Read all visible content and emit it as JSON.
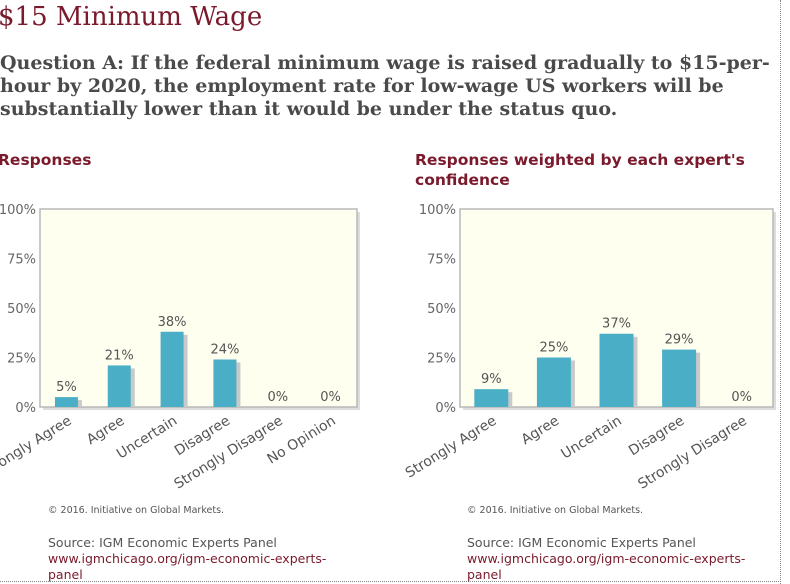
{
  "page": {
    "title": "$15 Minimum Wage",
    "question": "Question A: If the federal minimum wage is raised gradually to $15-per-hour by 2020, the employment rate for low-wage US workers will be substantially lower than it would be under the status quo."
  },
  "colors": {
    "bar": "#4aafc6",
    "bar_shadow": "#c9c9c9",
    "plot_bg": "#fffff0",
    "plot_border": "#b8b8b8",
    "heading": "#7a1a2c",
    "text": "#555555"
  },
  "chart_data": [
    {
      "type": "bar",
      "title": "Responses",
      "categories": [
        "Strongly Agree",
        "Agree",
        "Uncertain",
        "Disagree",
        "Strongly Disagree",
        "No Opinion"
      ],
      "values": [
        5,
        21,
        38,
        24,
        0,
        0
      ],
      "value_labels": [
        "5%",
        "21%",
        "38%",
        "24%",
        "0%",
        "0%"
      ],
      "y_ticks": [
        "100%",
        "75%",
        "50%",
        "25%",
        "0%"
      ],
      "ylim": [
        0,
        100
      ],
      "xlabel": "",
      "ylabel": ""
    },
    {
      "type": "bar",
      "title": "Responses weighted by each expert's confidence",
      "categories": [
        "Strongly Agree",
        "Agree",
        "Uncertain",
        "Disagree",
        "Strongly Disagree"
      ],
      "values": [
        9,
        25,
        37,
        29,
        0
      ],
      "value_labels": [
        "9%",
        "25%",
        "37%",
        "29%",
        "0%"
      ],
      "y_ticks": [
        "100%",
        "75%",
        "50%",
        "25%",
        "0%"
      ],
      "ylim": [
        0,
        100
      ],
      "xlabel": "",
      "ylabel": ""
    }
  ],
  "footer": [
    {
      "copyright": "© 2016. Initiative on Global Markets.",
      "source": "Source: IGM Economic Experts Panel",
      "link": "www.igmchicago.org/igm-economic-experts-panel"
    },
    {
      "copyright": "© 2016. Initiative on Global Markets.",
      "source": "Source: IGM Economic Experts Panel",
      "link": "www.igmchicago.org/igm-economic-experts-panel"
    }
  ]
}
